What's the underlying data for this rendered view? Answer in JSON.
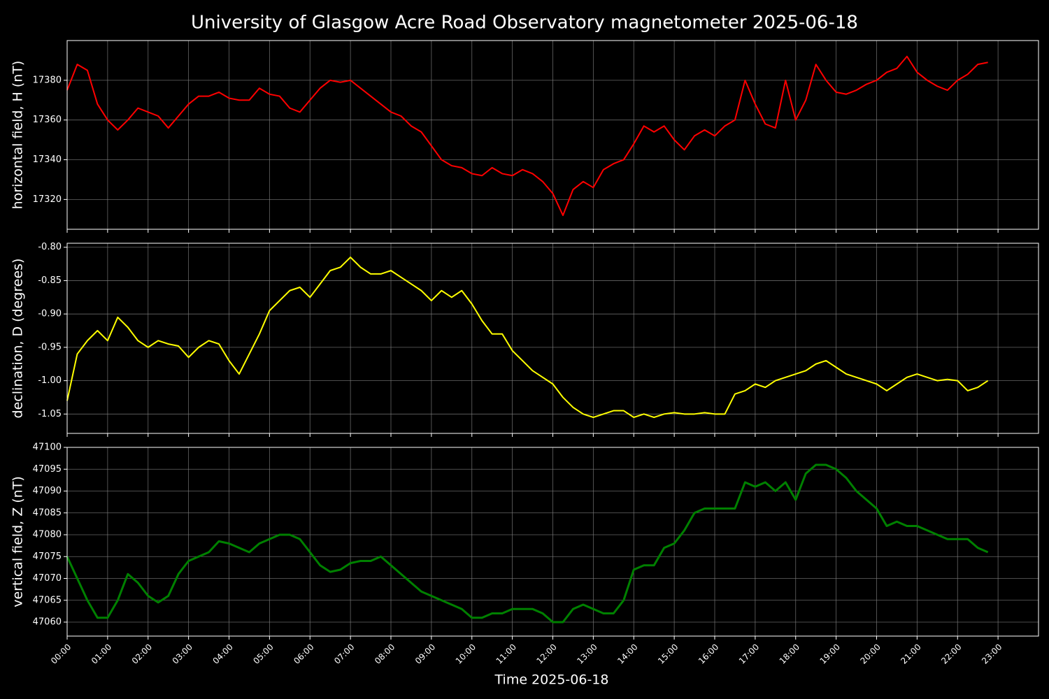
{
  "chart_data": [
    {
      "type": "line",
      "title": "University of Glasgow Acre Road Observatory magnetometer 2025-06-18",
      "ylabel": "horizontal field, H (nT)",
      "color": "#ff0000",
      "grid": true,
      "x": [
        "00:00",
        "00:15",
        "00:30",
        "00:45",
        "01:00",
        "01:15",
        "01:30",
        "01:45",
        "02:00",
        "02:15",
        "02:30",
        "02:45",
        "03:00",
        "03:15",
        "03:30",
        "03:45",
        "04:00",
        "04:15",
        "04:30",
        "04:45",
        "05:00",
        "05:15",
        "05:30",
        "05:45",
        "06:00",
        "06:15",
        "06:30",
        "06:45",
        "07:00",
        "07:15",
        "07:30",
        "07:45",
        "08:00",
        "08:15",
        "08:30",
        "08:45",
        "09:00",
        "09:15",
        "09:30",
        "09:45",
        "10:00",
        "10:15",
        "10:30",
        "10:45",
        "11:00",
        "11:15",
        "11:30",
        "11:45",
        "12:00",
        "12:15",
        "12:30",
        "12:45",
        "13:00",
        "13:15",
        "13:30",
        "13:45",
        "14:00",
        "14:15",
        "14:30",
        "14:45",
        "15:00",
        "15:15",
        "15:30",
        "15:45",
        "16:00",
        "16:15",
        "16:30",
        "16:45",
        "17:00",
        "17:15",
        "17:30",
        "17:45",
        "18:00",
        "18:15",
        "18:30",
        "18:45",
        "19:00",
        "19:15",
        "19:30",
        "19:45",
        "20:00",
        "20:15",
        "20:30",
        "20:45",
        "21:00",
        "21:15",
        "21:30",
        "21:45",
        "22:00",
        "22:15",
        "22:30",
        "22:45"
      ],
      "values": [
        17375,
        17388,
        17385,
        17368,
        17360,
        17355,
        17360,
        17366,
        17364,
        17362,
        17356,
        17362,
        17368,
        17372,
        17372,
        17374,
        17371,
        17370,
        17370,
        17376,
        17373,
        17372,
        17366,
        17364,
        17370,
        17376,
        17380,
        17379,
        17380,
        17376,
        17372,
        17368,
        17364,
        17362,
        17357,
        17354,
        17347,
        17340,
        17337,
        17336,
        17333,
        17332,
        17336,
        17333,
        17332,
        17335,
        17333,
        17329,
        17323,
        17312,
        17325,
        17329,
        17326,
        17335,
        17338,
        17340,
        17348,
        17357,
        17354,
        17357,
        17350,
        17345,
        17352,
        17355,
        17352,
        17357,
        17360,
        17380,
        17368,
        17358,
        17356,
        17380,
        17360,
        17370,
        17388,
        17380,
        17374,
        17373,
        17375,
        17378,
        17380,
        17384,
        17386,
        17392,
        17384,
        17380,
        17377,
        17375,
        17380,
        17383,
        17388,
        17389
      ],
      "xlim": [
        "00:00",
        "24:00"
      ],
      "ylim": [
        17305,
        17400
      ],
      "yticks": [
        17320,
        17340,
        17360,
        17380
      ]
    },
    {
      "type": "line",
      "ylabel": "declination, D (degrees)",
      "color": "#ffff00",
      "grid": true,
      "x": [
        "00:00",
        "00:15",
        "00:30",
        "00:45",
        "01:00",
        "01:15",
        "01:30",
        "01:45",
        "02:00",
        "02:15",
        "02:30",
        "02:45",
        "03:00",
        "03:15",
        "03:30",
        "03:45",
        "04:00",
        "04:15",
        "04:30",
        "04:45",
        "05:00",
        "05:15",
        "05:30",
        "05:45",
        "06:00",
        "06:15",
        "06:30",
        "06:45",
        "07:00",
        "07:15",
        "07:30",
        "07:45",
        "08:00",
        "08:15",
        "08:30",
        "08:45",
        "09:00",
        "09:15",
        "09:30",
        "09:45",
        "10:00",
        "10:15",
        "10:30",
        "10:45",
        "11:00",
        "11:15",
        "11:30",
        "11:45",
        "12:00",
        "12:15",
        "12:30",
        "12:45",
        "13:00",
        "13:15",
        "13:30",
        "13:45",
        "14:00",
        "14:15",
        "14:30",
        "14:45",
        "15:00",
        "15:15",
        "15:30",
        "15:45",
        "16:00",
        "16:15",
        "16:30",
        "16:45",
        "17:00",
        "17:15",
        "17:30",
        "17:45",
        "18:00",
        "18:15",
        "18:30",
        "18:45",
        "19:00",
        "19:15",
        "19:30",
        "19:45",
        "20:00",
        "20:15",
        "20:30",
        "20:45",
        "21:00",
        "21:15",
        "21:30",
        "21:45",
        "22:00",
        "22:15",
        "22:30",
        "22:45"
      ],
      "values": [
        -1.03,
        -0.96,
        -0.94,
        -0.925,
        -0.94,
        -0.905,
        -0.92,
        -0.94,
        -0.95,
        -0.94,
        -0.945,
        -0.948,
        -0.965,
        -0.95,
        -0.94,
        -0.945,
        -0.97,
        -0.99,
        -0.96,
        -0.93,
        -0.895,
        -0.88,
        -0.865,
        -0.86,
        -0.875,
        -0.855,
        -0.835,
        -0.83,
        -0.815,
        -0.83,
        -0.84,
        -0.84,
        -0.835,
        -0.845,
        -0.855,
        -0.865,
        -0.88,
        -0.865,
        -0.875,
        -0.865,
        -0.885,
        -0.91,
        -0.93,
        -0.93,
        -0.955,
        -0.97,
        -0.985,
        -0.995,
        -1.005,
        -1.025,
        -1.04,
        -1.05,
        -1.055,
        -1.05,
        -1.045,
        -1.045,
        -1.055,
        -1.05,
        -1.055,
        -1.05,
        -1.048,
        -1.05,
        -1.05,
        -1.048,
        -1.05,
        -1.05,
        -1.02,
        -1.015,
        -1.005,
        -1.01,
        -1.0,
        -0.995,
        -0.99,
        -0.985,
        -0.975,
        -0.97,
        -0.98,
        -0.99,
        -0.995,
        -1.0,
        -1.005,
        -1.015,
        -1.005,
        -0.995,
        -0.99,
        -0.995,
        -1.0,
        -0.998,
        -1.0,
        -1.015,
        -1.01,
        -1.0
      ],
      "xlim": [
        "00:00",
        "24:00"
      ],
      "ylim": [
        -1.079,
        -0.794
      ],
      "yticks": [
        {
          "value": -1.05,
          "label": "-1.05"
        },
        {
          "value": -1.0,
          "label": "-1.00"
        },
        {
          "value": -0.95,
          "label": "-0.95"
        },
        {
          "value": -0.9,
          "label": "-0.90"
        },
        {
          "value": -0.85,
          "label": "-0.85"
        },
        {
          "value": -0.8,
          "label": "-0.80"
        }
      ]
    },
    {
      "type": "line",
      "ylabel": "vertical field, Z (nT)",
      "xlabel": "Time 2025-06-18",
      "color": "#008000",
      "grid": true,
      "x": [
        "00:00",
        "00:15",
        "00:30",
        "00:45",
        "01:00",
        "01:15",
        "01:30",
        "01:45",
        "02:00",
        "02:15",
        "02:30",
        "02:45",
        "03:00",
        "03:15",
        "03:30",
        "03:45",
        "04:00",
        "04:15",
        "04:30",
        "04:45",
        "05:00",
        "05:15",
        "05:30",
        "05:45",
        "06:00",
        "06:15",
        "06:30",
        "06:45",
        "07:00",
        "07:15",
        "07:30",
        "07:45",
        "08:00",
        "08:15",
        "08:30",
        "08:45",
        "09:00",
        "09:15",
        "09:30",
        "09:45",
        "10:00",
        "10:15",
        "10:30",
        "10:45",
        "11:00",
        "11:15",
        "11:30",
        "11:45",
        "12:00",
        "12:15",
        "12:30",
        "12:45",
        "13:00",
        "13:15",
        "13:30",
        "13:45",
        "14:00",
        "14:15",
        "14:30",
        "14:45",
        "15:00",
        "15:15",
        "15:30",
        "15:45",
        "16:00",
        "16:15",
        "16:30",
        "16:45",
        "17:00",
        "17:15",
        "17:30",
        "17:45",
        "18:00",
        "18:15",
        "18:30",
        "18:45",
        "19:00",
        "19:15",
        "19:30",
        "19:45",
        "20:00",
        "20:15",
        "20:30",
        "20:45",
        "21:00",
        "21:15",
        "21:30",
        "21:45",
        "22:00",
        "22:15",
        "22:30",
        "22:45"
      ],
      "values": [
        47075,
        47070,
        47065,
        47061,
        47061,
        47065,
        47071,
        47069,
        47066,
        47064.5,
        47066,
        47071,
        47074,
        47075,
        47076,
        47078.5,
        47078,
        47077,
        47076,
        47078,
        47079,
        47080,
        47080,
        47079,
        47076,
        47073,
        47071.5,
        47072,
        47073.5,
        47074,
        47074,
        47075,
        47073,
        47071,
        47069,
        47067,
        47066,
        47065,
        47064,
        47063,
        47061,
        47061,
        47062,
        47062,
        47063,
        47063,
        47063,
        47062,
        47060,
        47060,
        47063,
        47064,
        47063,
        47062,
        47062,
        47065,
        47072,
        47073,
        47073,
        47077,
        47078,
        47081,
        47085,
        47086,
        47086,
        47086,
        47086,
        47092,
        47091,
        47092,
        47090,
        47092,
        47088,
        47094,
        47096,
        47096,
        47095,
        47093,
        47090,
        47088,
        47086,
        47082,
        47083,
        47082,
        47082,
        47081,
        47080,
        47079,
        47079,
        47079,
        47077,
        47076
      ],
      "xlim": [
        "00:00",
        "24:00"
      ],
      "ylim": [
        47056.8,
        47100
      ],
      "yticks": [
        47060,
        47065,
        47070,
        47075,
        47080,
        47085,
        47090,
        47095,
        47100
      ],
      "xticks": [
        "00:00",
        "01:00",
        "02:00",
        "03:00",
        "04:00",
        "05:00",
        "06:00",
        "07:00",
        "08:00",
        "09:00",
        "10:00",
        "11:00",
        "12:00",
        "13:00",
        "14:00",
        "15:00",
        "16:00",
        "17:00",
        "18:00",
        "19:00",
        "20:00",
        "21:00",
        "22:00",
        "23:00"
      ]
    }
  ]
}
